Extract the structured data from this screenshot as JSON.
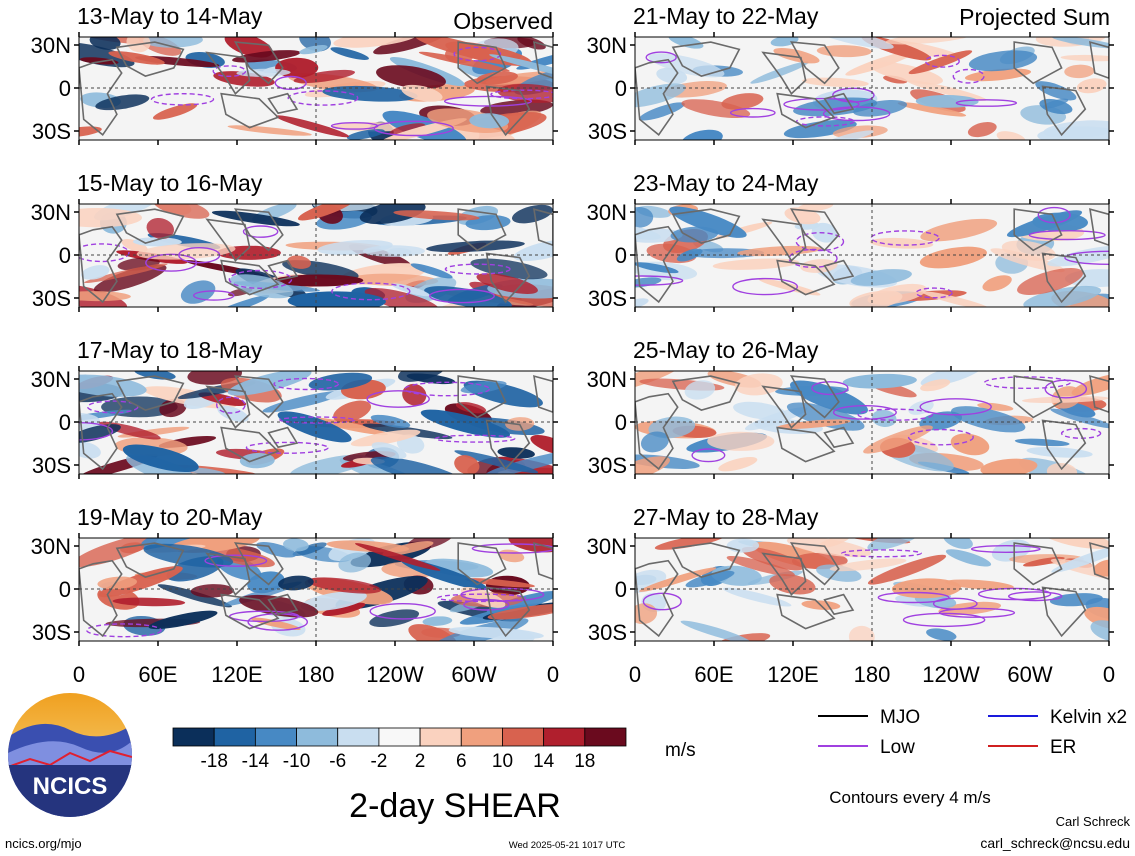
{
  "header": {
    "left_label": "Observed",
    "right_label": "Projected Sum"
  },
  "chart_data": {
    "type": "heatmap",
    "variable": "2-day SHEAR",
    "units": "m/s",
    "lon_ticks": [
      "0",
      "60E",
      "120E",
      "180",
      "120W",
      "60W",
      "0"
    ],
    "lat_ticks": [
      "30N",
      "0",
      "30S"
    ],
    "panels": [
      {
        "column": "observed",
        "period": "13-May to 14-May"
      },
      {
        "column": "observed",
        "period": "15-May to 16-May"
      },
      {
        "column": "observed",
        "period": "17-May to 18-May"
      },
      {
        "column": "observed",
        "period": "19-May to 20-May"
      },
      {
        "column": "projected",
        "period": "21-May to 22-May"
      },
      {
        "column": "projected",
        "period": "23-May to 24-May"
      },
      {
        "column": "projected",
        "period": "25-May to 26-May"
      },
      {
        "column": "projected",
        "period": "27-May to 28-May"
      }
    ],
    "colorbar": {
      "tick_labels": [
        "-18",
        "-14",
        "-10",
        "-6",
        "-2",
        "2",
        "6",
        "10",
        "14",
        "18"
      ],
      "colors": [
        "#0b2f5a",
        "#1f63a3",
        "#4789c4",
        "#8ebbdc",
        "#c9def0",
        "#f8f8f8",
        "#fad2bf",
        "#f0a07e",
        "#d8624f",
        "#b01f2d",
        "#6a0a1e"
      ]
    },
    "legend": [
      {
        "label": "MJO",
        "color": "#000000"
      },
      {
        "label": "Kelvin x2",
        "color": "#1a1adc"
      },
      {
        "label": "Low",
        "color": "#a040e0"
      },
      {
        "label": "ER",
        "color": "#d02020"
      }
    ],
    "contour_note": "Contours every 4 m/s"
  },
  "title": "2-day SHEAR",
  "units_label": "m/s",
  "logo_text": "NCICS",
  "footer": {
    "url": "ncics.org/mjo",
    "timestamp": "Wed 2025-05-21 1017 UTC",
    "author": "Carl Schreck",
    "email": "carl_schreck@ncsu.edu"
  }
}
